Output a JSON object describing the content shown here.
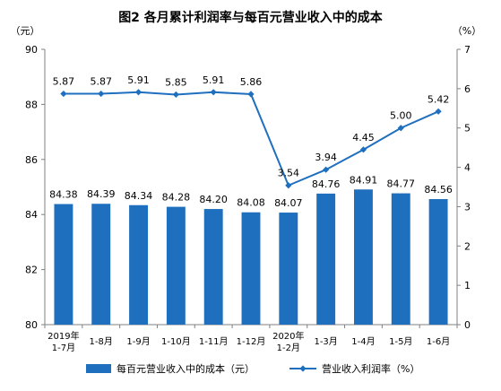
{
  "chart_data": {
    "type": "bar+line",
    "title": "图2  各月累计利润率与每百元营业收入中的成本",
    "left_unit": "（元）",
    "right_unit": "（%）",
    "categories": [
      [
        "2019年",
        "1-7月"
      ],
      [
        "1-8月"
      ],
      [
        "1-9月"
      ],
      [
        "1-10月"
      ],
      [
        "1-11月"
      ],
      [
        "1-12月"
      ],
      [
        "2020年",
        "1-2月"
      ],
      [
        "1-3月"
      ],
      [
        "1-4月"
      ],
      [
        "1-5月"
      ],
      [
        "1-6月"
      ]
    ],
    "y_left": {
      "min": 80,
      "max": 90,
      "ticks": [
        "80",
        "82",
        "84",
        "86",
        "88",
        "90"
      ]
    },
    "y_right": {
      "min": 0,
      "max": 7,
      "ticks": [
        "0",
        "1",
        "2",
        "3",
        "4",
        "5",
        "6",
        "7"
      ]
    },
    "series": [
      {
        "name": "每百元营业收入中的成本（元）",
        "kind": "bar",
        "axis": "left",
        "color": "#1f6fbf",
        "values": [
          84.38,
          84.39,
          84.34,
          84.28,
          84.2,
          84.08,
          84.07,
          84.76,
          84.91,
          84.77,
          84.56
        ],
        "labels": [
          "84.38",
          "84.39",
          "84.34",
          "84.28",
          "84.20",
          "84.08",
          "84.07",
          "84.76",
          "84.91",
          "84.77",
          "84.56"
        ]
      },
      {
        "name": "营业收入利润率（%）",
        "kind": "line",
        "axis": "right",
        "color": "#1f6fbf",
        "values": [
          5.87,
          5.87,
          5.91,
          5.85,
          5.91,
          5.86,
          3.54,
          3.94,
          4.45,
          5.0,
          5.42
        ],
        "labels": [
          "5.87",
          "5.87",
          "5.91",
          "5.85",
          "5.91",
          "5.86",
          "3.54",
          "3.94",
          "4.45",
          "5.00",
          "5.42"
        ]
      }
    ],
    "legend_position": "bottom",
    "grid": false
  }
}
